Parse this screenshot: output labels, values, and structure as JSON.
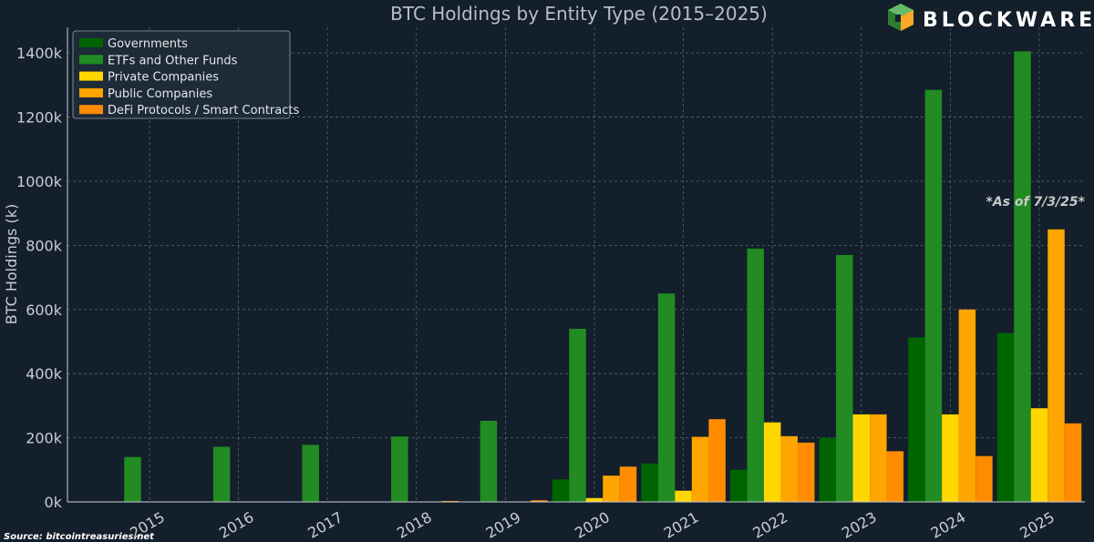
{
  "chart_data": {
    "type": "bar",
    "title": "BTC Holdings by Entity Type (2015–2025)",
    "xlabel": "",
    "ylabel": "BTC Holdings (k)",
    "ylim": [
      0,
      1480000
    ],
    "yticks": [
      0,
      200000,
      400000,
      600000,
      800000,
      1000000,
      1200000,
      1400000
    ],
    "ytick_labels": [
      "0k",
      "200k",
      "400k",
      "600k",
      "800k",
      "1000k",
      "1200k",
      "1400k"
    ],
    "categories": [
      "2015",
      "2016",
      "2017",
      "2018",
      "2019",
      "2020",
      "2021",
      "2022",
      "2023",
      "2024",
      "2025"
    ],
    "grid": true,
    "legend_position": "top-left",
    "series": [
      {
        "name": "Governments",
        "color": "#006400",
        "values": [
          0,
          0,
          0,
          0,
          0,
          70000,
          120000,
          100000,
          200000,
          513000,
          527000
        ]
      },
      {
        "name": "ETFs and Other Funds",
        "color": "#228b22",
        "values": [
          140000,
          172000,
          178000,
          204000,
          253000,
          540000,
          650000,
          790000,
          770000,
          1285000,
          1405000
        ]
      },
      {
        "name": "Private Companies",
        "color": "#ffd700",
        "values": [
          0,
          0,
          0,
          0,
          0,
          12000,
          35000,
          248000,
          273000,
          273000,
          292000
        ]
      },
      {
        "name": "Public Companies",
        "color": "#ffa500",
        "values": [
          0,
          0,
          0,
          0,
          0,
          82000,
          203000,
          205000,
          273000,
          600000,
          850000
        ]
      },
      {
        "name": "DeFi Protocols / Smart Contracts",
        "color": "#ff8c00",
        "values": [
          0,
          0,
          0,
          3000,
          5000,
          110000,
          258000,
          185000,
          158000,
          143000,
          245000
        ]
      }
    ],
    "annotation": "*As of 7/3/25*",
    "source": "Source: bitcointreasuries.net"
  },
  "brand": {
    "name": "BLOCKWARE",
    "colors": [
      "#2e7d32",
      "#f9a825"
    ]
  }
}
